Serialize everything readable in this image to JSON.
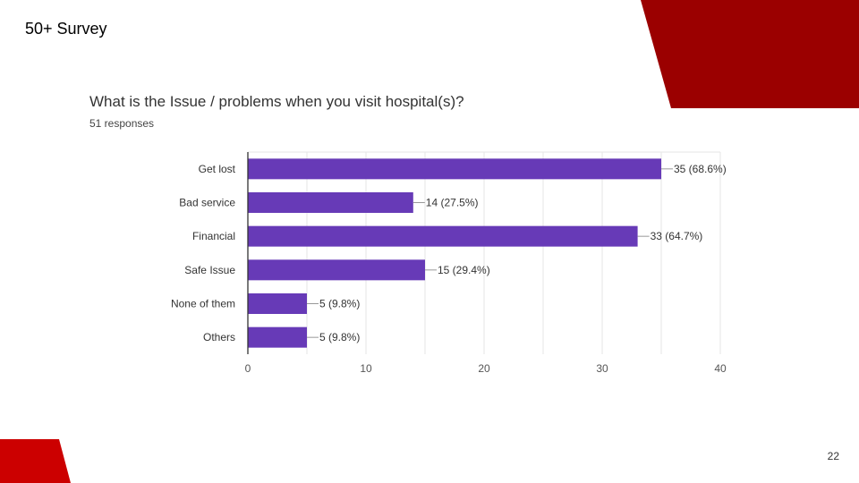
{
  "slide": {
    "title": "50+ Survey",
    "page_number": "22",
    "accent_dark": "#9b0000",
    "accent_red": "#cc0000"
  },
  "chart_data": {
    "type": "bar",
    "orientation": "horizontal",
    "title": "What is the Issue / problems when you visit hospital(s)?",
    "subtitle": "51 responses",
    "categories": [
      "Get lost",
      "Bad service",
      "Financial",
      "Safe Issue",
      "None of them",
      "Others"
    ],
    "values": [
      35,
      14,
      33,
      15,
      5,
      5
    ],
    "value_labels": [
      "35 (68.6%)",
      "14 (27.5%)",
      "33 (64.7%)",
      "15 (29.4%)",
      "5 (9.8%)",
      "5 (9.8%)"
    ],
    "xlim": [
      0,
      40
    ],
    "xticks": [
      0,
      10,
      20,
      30,
      40
    ],
    "grid": true,
    "bar_color": "#673ab7"
  }
}
